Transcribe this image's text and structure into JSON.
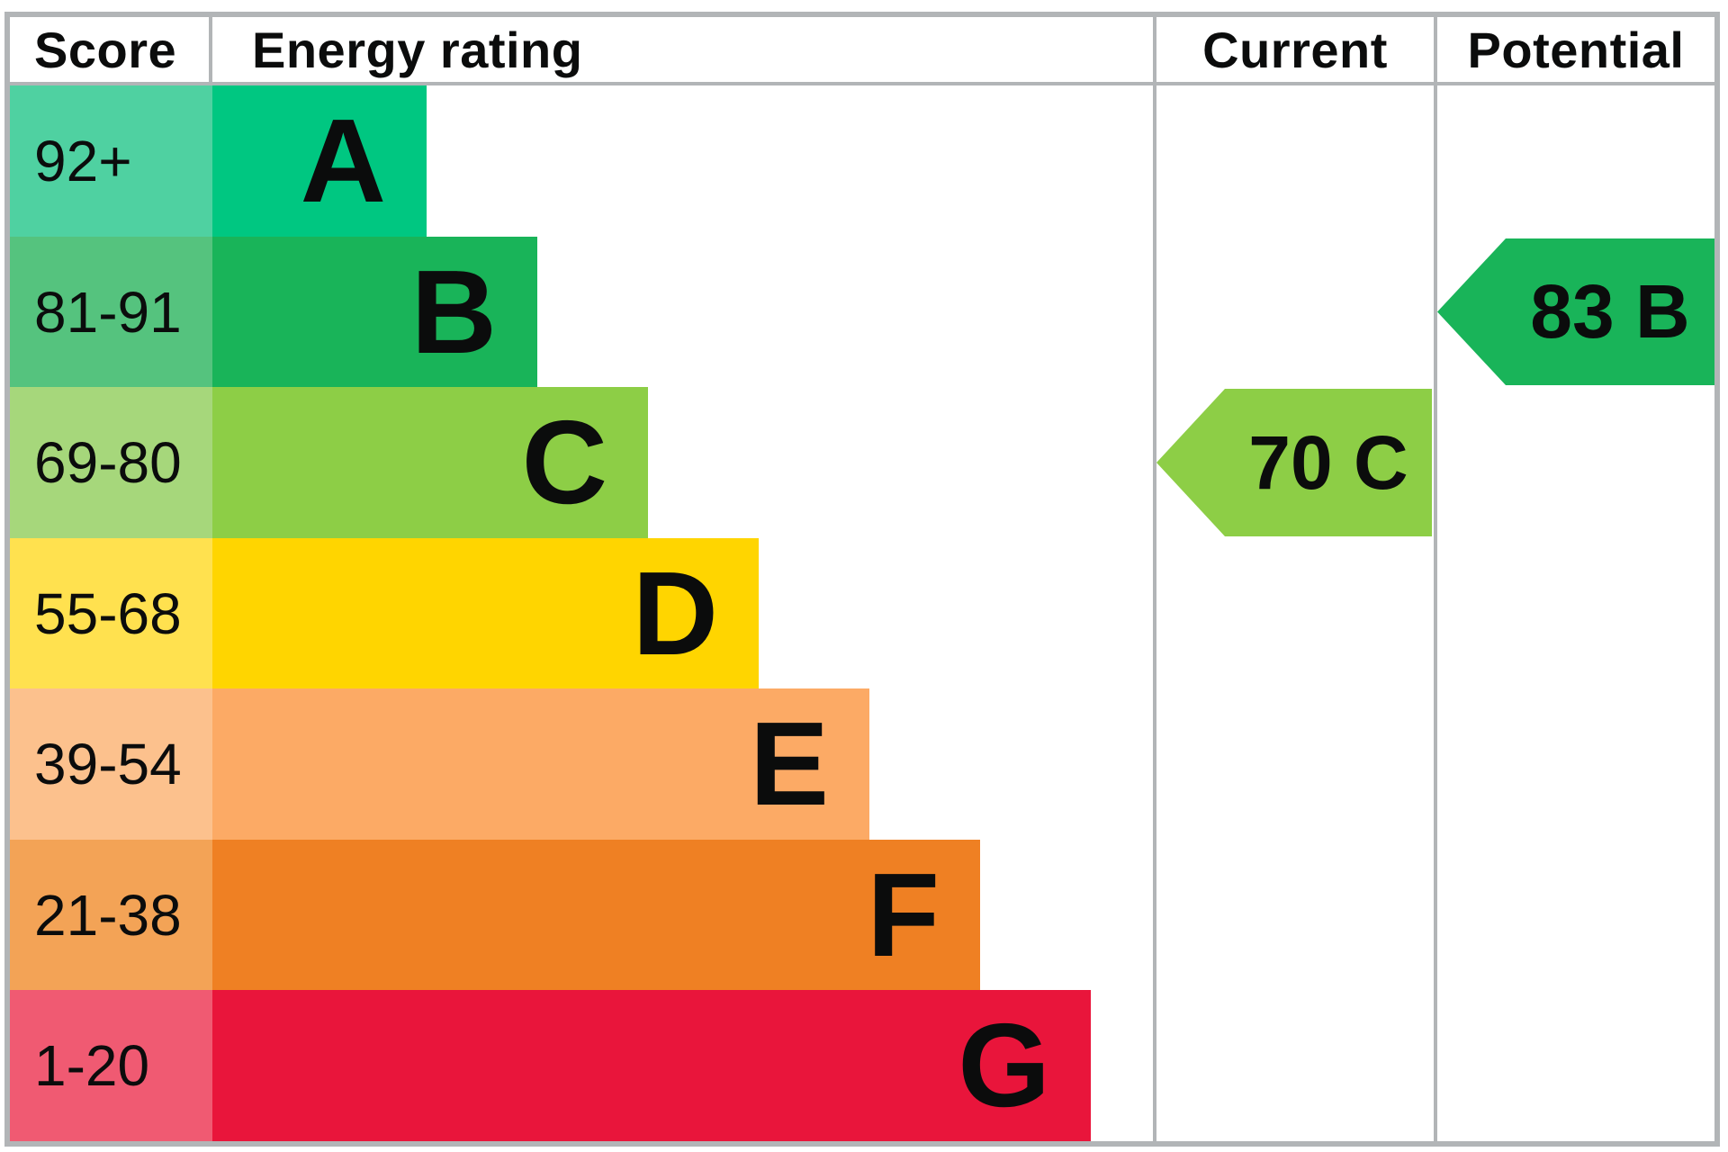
{
  "columns": {
    "score": "Score",
    "rating": "Energy rating",
    "current": "Current",
    "potential": "Potential"
  },
  "bands": [
    {
      "score": "92+",
      "letter": "A",
      "color": "#00c781",
      "score_color": "#4fd1a1"
    },
    {
      "score": "81-91",
      "letter": "B",
      "color": "#19b459",
      "score_color": "#55c37e"
    },
    {
      "score": "69-80",
      "letter": "C",
      "color": "#8dce46",
      "score_color": "#a6d77b"
    },
    {
      "score": "55-68",
      "letter": "D",
      "color": "#ffd500",
      "score_color": "#ffe14f"
    },
    {
      "score": "39-54",
      "letter": "E",
      "color": "#fcaa65",
      "score_color": "#fcc18d"
    },
    {
      "score": "21-38",
      "letter": "F",
      "color": "#ef8023",
      "score_color": "#f3a356"
    },
    {
      "score": "1-20",
      "letter": "G",
      "color": "#e9153b",
      "score_color": "#f05a72"
    }
  ],
  "current": {
    "label": "70 C",
    "value": 70,
    "band": "C",
    "band_index": 2,
    "color": "#8dce46"
  },
  "potential": {
    "label": "83 B",
    "value": 83,
    "band": "B",
    "band_index": 1,
    "color": "#19b459"
  },
  "border_color": "#b2b5b7",
  "chart_data": {
    "type": "bar",
    "orientation": "horizontal",
    "title": "Energy rating",
    "columns": [
      "Score",
      "Energy rating",
      "Current",
      "Potential"
    ],
    "categories": [
      "A",
      "B",
      "C",
      "D",
      "E",
      "F",
      "G"
    ],
    "score_ranges": [
      "92+",
      "81-91",
      "69-80",
      "55-68",
      "39-54",
      "21-38",
      "1-20"
    ],
    "bar_relative_lengths": [
      1,
      2,
      3,
      4,
      5,
      6,
      7
    ],
    "band_colors": [
      "#00c781",
      "#19b459",
      "#8dce46",
      "#ffd500",
      "#fcaa65",
      "#ef8023",
      "#e9153b"
    ],
    "markers": {
      "current": {
        "score": 70,
        "band": "C",
        "column": "Current"
      },
      "potential": {
        "score": 83,
        "band": "B",
        "column": "Potential"
      }
    },
    "legend": false,
    "grid": false
  }
}
